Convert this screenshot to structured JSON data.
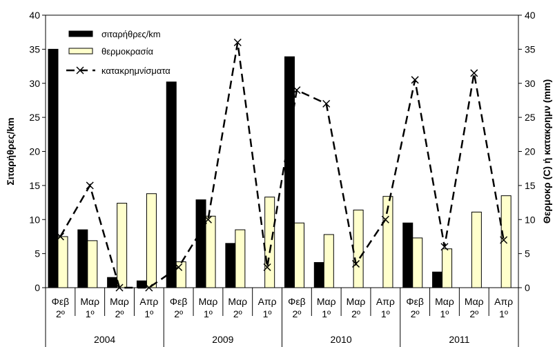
{
  "chart_data": {
    "type": "bar",
    "title": "",
    "ylabel": "Σιταρήθρες/km",
    "y2label": "Θερμοκρ (C) ή κατακρημν (mm)",
    "ylim": [
      0,
      40
    ],
    "y2lim": [
      0,
      40
    ],
    "yticks": [
      0,
      5,
      10,
      15,
      20,
      25,
      30,
      35,
      40
    ],
    "grid": false,
    "legend_position": "top-left",
    "categories": [
      {
        "month": "Φεβ",
        "period": "2º"
      },
      {
        "month": "Μαρ",
        "period": "1º"
      },
      {
        "month": "Μαρ",
        "period": "2º"
      },
      {
        "month": "Απρ",
        "period": "1º"
      },
      {
        "month": "Φεβ",
        "period": "2º"
      },
      {
        "month": "Μαρ",
        "period": "1º"
      },
      {
        "month": "Μαρ",
        "period": "2º"
      },
      {
        "month": "Απρ",
        "period": "1º"
      },
      {
        "month": "Φεβ",
        "period": "2º"
      },
      {
        "month": "Μαρ",
        "period": "1º"
      },
      {
        "month": "Μαρ",
        "period": "2º"
      },
      {
        "month": "Απρ",
        "period": "1º"
      },
      {
        "month": "Φεβ",
        "period": "2º"
      },
      {
        "month": "Μαρ",
        "period": "1º"
      },
      {
        "month": "Μαρ",
        "period": "2º"
      },
      {
        "month": "Απρ",
        "period": "1º"
      }
    ],
    "groups": [
      {
        "label": "2004",
        "size": 4
      },
      {
        "label": "2009",
        "size": 4
      },
      {
        "label": "2010",
        "size": 4
      },
      {
        "label": "2011",
        "size": 4
      }
    ],
    "series": [
      {
        "name": "σιταρήθρες/km",
        "kind": "bar",
        "color": "#000000",
        "values": [
          35,
          8.5,
          1.5,
          1,
          30.2,
          12.9,
          6.5,
          0,
          33.9,
          3.7,
          0,
          0,
          9.5,
          2.3,
          0,
          0
        ]
      },
      {
        "name": "θερμοκρασία",
        "kind": "bar",
        "color": "#ffffcc",
        "values": [
          7.5,
          6.9,
          12.4,
          13.8,
          3.8,
          10.5,
          8.5,
          13.3,
          9.5,
          7.8,
          11.4,
          13.4,
          7.3,
          5.7,
          11.1,
          13.5
        ]
      },
      {
        "name": "κατακρημνίσματα",
        "kind": "line",
        "style": "dashed",
        "marker": "x",
        "color": "#000000",
        "values": [
          7.5,
          15,
          0,
          0,
          3,
          10,
          36,
          3,
          29,
          27,
          3.5,
          10,
          30.5,
          6,
          31.5,
          7
        ]
      }
    ]
  }
}
